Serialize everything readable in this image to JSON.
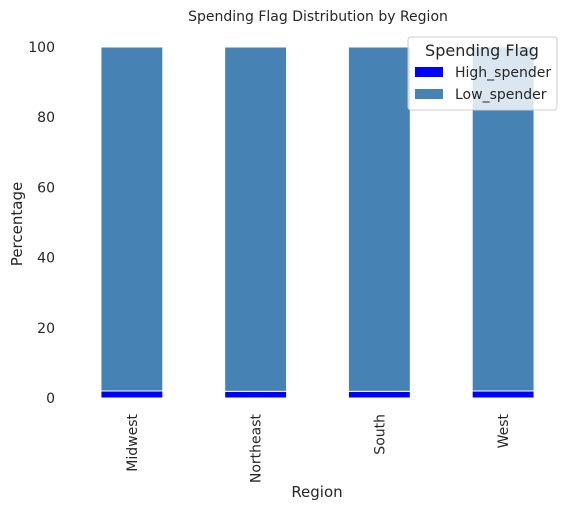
{
  "chart_data": {
    "type": "bar",
    "stacked": true,
    "title": "Spending Flag Distribution by Region",
    "xlabel": "Region",
    "ylabel": "Percentage",
    "ylim": [
      0,
      100
    ],
    "yticks": [
      0,
      20,
      40,
      60,
      80,
      100
    ],
    "categories": [
      "Midwest",
      "Northeast",
      "South",
      "West"
    ],
    "series": [
      {
        "name": "High_spender",
        "color": "#0000ff",
        "values": [
          2.0,
          1.9,
          1.9,
          2.0
        ]
      },
      {
        "name": "Low_spender",
        "color": "#4682b4",
        "values": [
          98.0,
          98.1,
          98.1,
          98.0
        ]
      }
    ],
    "legend": {
      "title": "Spending Flag",
      "position": "top-right"
    },
    "grid": false
  }
}
